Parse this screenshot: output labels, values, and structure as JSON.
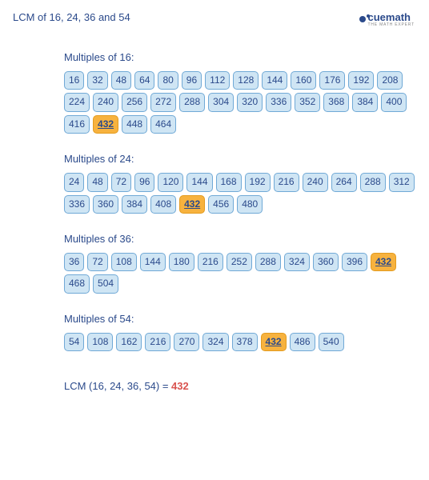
{
  "title": "LCM of 16, 24, 36 and 54",
  "brand": {
    "name": "cuemath",
    "tag": "THE MATH EXPERT"
  },
  "highlight_value": 432,
  "chip_style": {
    "bg": "#cfe5f4",
    "border": "#70a9d6",
    "text": "#2b4a8b",
    "hl_bg": "#f7b23e",
    "hl_border": "#e39b1f",
    "radius": 5,
    "fontsize": 12
  },
  "sections": [
    {
      "label": "Multiples of 16:",
      "values": [
        16,
        32,
        48,
        64,
        80,
        96,
        112,
        128,
        144,
        160,
        176,
        192,
        208,
        224,
        240,
        256,
        272,
        288,
        304,
        320,
        336,
        352,
        368,
        384,
        400,
        416,
        432,
        448,
        464
      ]
    },
    {
      "label": "Multiples of 24:",
      "values": [
        24,
        48,
        72,
        96,
        120,
        144,
        168,
        192,
        216,
        240,
        264,
        288,
        312,
        336,
        360,
        384,
        408,
        432,
        456,
        480
      ]
    },
    {
      "label": "Multiples of 36:",
      "values": [
        36,
        72,
        108,
        144,
        180,
        216,
        252,
        288,
        324,
        360,
        396,
        432,
        468,
        504
      ]
    },
    {
      "label": "Multiples of 54:",
      "values": [
        54,
        108,
        162,
        216,
        270,
        324,
        378,
        432,
        486,
        540
      ]
    }
  ],
  "result": {
    "label": "LCM (16, 24, 36, 54) = ",
    "value": "432",
    "value_color": "#d9534f"
  }
}
